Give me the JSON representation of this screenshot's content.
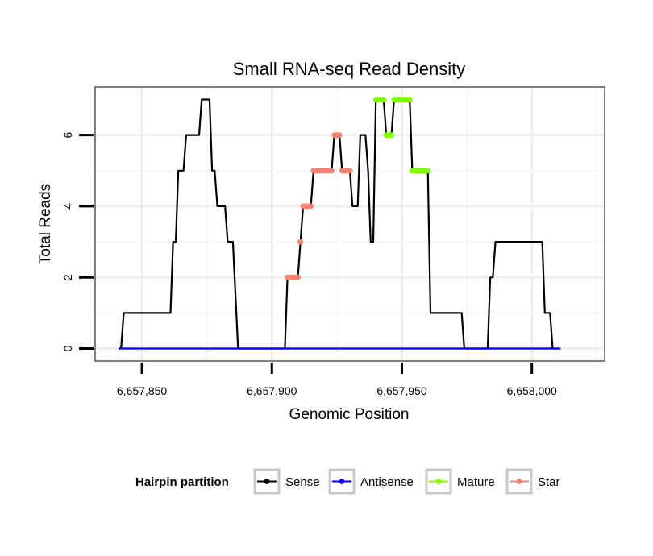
{
  "chart_data": {
    "type": "line",
    "title": "Small RNA-seq Read Density",
    "xlabel": "Genomic Position",
    "ylabel": "Total Reads",
    "xlim": [
      6657832,
      6658028
    ],
    "ylim": [
      -0.35,
      7.35
    ],
    "x_ticks": [
      6657850,
      6657900,
      6657950,
      6658000
    ],
    "x_tick_labels": [
      "6,657,850",
      "6,657,900",
      "6,657,950",
      "6,658,000"
    ],
    "y_ticks": [
      0,
      2,
      4,
      6
    ],
    "y_tick_labels": [
      "0",
      "2",
      "4",
      "6"
    ],
    "grid": true,
    "legend_position": "bottom",
    "legend_title": "Hairpin partition",
    "series": [
      {
        "name": "Sense",
        "color": "#000000",
        "points": [
          [
            6657841,
            0
          ],
          [
            6657842,
            0
          ],
          [
            6657843,
            1
          ],
          [
            6657861,
            1
          ],
          [
            6657862,
            3
          ],
          [
            6657863,
            3
          ],
          [
            6657864,
            5
          ],
          [
            6657866,
            5
          ],
          [
            6657867,
            6
          ],
          [
            6657872,
            6
          ],
          [
            6657873,
            7
          ],
          [
            6657876,
            7
          ],
          [
            6657877,
            5
          ],
          [
            6657878,
            5
          ],
          [
            6657879,
            4
          ],
          [
            6657882,
            4
          ],
          [
            6657883,
            3
          ],
          [
            6657885,
            3
          ],
          [
            6657886,
            1.5
          ],
          [
            6657887,
            0
          ],
          [
            6657905,
            0
          ],
          [
            6657906,
            2
          ],
          [
            6657910,
            2
          ],
          [
            6657911,
            3
          ],
          [
            6657912,
            4
          ],
          [
            6657915,
            4
          ],
          [
            6657916,
            5
          ],
          [
            6657923,
            5
          ],
          [
            6657924,
            6
          ],
          [
            6657926,
            6
          ],
          [
            6657927,
            5
          ],
          [
            6657930,
            5
          ],
          [
            6657931,
            4
          ],
          [
            6657933,
            4
          ],
          [
            6657934,
            6
          ],
          [
            6657936,
            6
          ],
          [
            6657937,
            5
          ],
          [
            6657938,
            3
          ],
          [
            6657939,
            3
          ],
          [
            6657940,
            7
          ],
          [
            6657943,
            7
          ],
          [
            6657944,
            6
          ],
          [
            6657946,
            6
          ],
          [
            6657947,
            7
          ],
          [
            6657953,
            7
          ],
          [
            6657954,
            5
          ],
          [
            6657960,
            5
          ],
          [
            6657961,
            1
          ],
          [
            6657973,
            1
          ],
          [
            6657974,
            0
          ],
          [
            6657983,
            0
          ],
          [
            6657984,
            2
          ],
          [
            6657985,
            2
          ],
          [
            6657986,
            3
          ],
          [
            6658004,
            3
          ],
          [
            6658005,
            1
          ],
          [
            6658007,
            1
          ],
          [
            6658008,
            0
          ],
          [
            6658011,
            0
          ]
        ]
      },
      {
        "name": "Antisense",
        "color": "#0000ff",
        "points": [
          [
            6657841,
            0
          ],
          [
            6658011,
            0
          ]
        ]
      },
      {
        "name": "Mature",
        "color": "#7fff00",
        "segments": [
          [
            [
              6657940,
              7
            ],
            [
              6657943,
              7
            ]
          ],
          [
            [
              6657944,
              6
            ],
            [
              6657946,
              6
            ]
          ],
          [
            [
              6657947,
              7
            ],
            [
              6657953,
              7
            ]
          ],
          [
            [
              6657954,
              5
            ],
            [
              6657960,
              5
            ]
          ]
        ]
      },
      {
        "name": "Star",
        "color": "#fa8072",
        "segments": [
          [
            [
              6657906,
              2
            ],
            [
              6657910,
              2
            ]
          ],
          [
            [
              6657911,
              3
            ],
            [
              6657911,
              3
            ]
          ],
          [
            [
              6657912,
              4
            ],
            [
              6657915,
              4
            ]
          ],
          [
            [
              6657916,
              5
            ],
            [
              6657923,
              5
            ]
          ],
          [
            [
              6657924,
              6
            ],
            [
              6657926,
              6
            ]
          ],
          [
            [
              6657927,
              5
            ],
            [
              6657930,
              5
            ]
          ]
        ]
      }
    ]
  }
}
